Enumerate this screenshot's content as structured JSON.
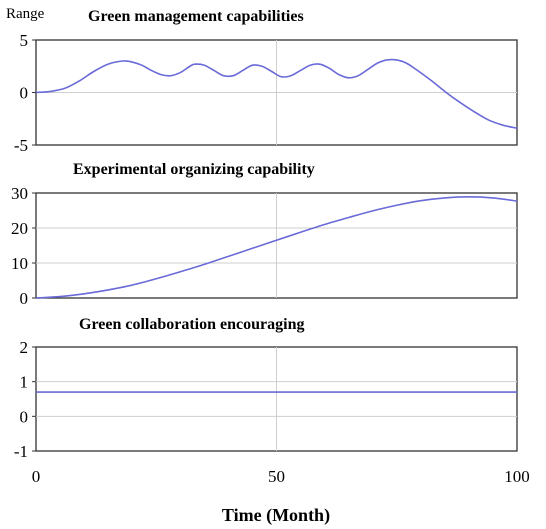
{
  "range_label": "Range",
  "xlabel": "Time (Month)",
  "x_ticks": [
    0,
    50,
    100
  ],
  "xlim": [
    0,
    100
  ],
  "line_color": "#6a6ad8",
  "chart_data": [
    {
      "type": "line",
      "title": "Green management capabilities",
      "xlim": [
        0,
        100
      ],
      "ylim": [
        -5,
        5
      ],
      "y_ticks": [
        5,
        0,
        -5
      ],
      "grid": true,
      "x": [
        0,
        3,
        6,
        9,
        12,
        15,
        18,
        20,
        22,
        24,
        26,
        28,
        30,
        32,
        33,
        35,
        37,
        39,
        41,
        43,
        45,
        47,
        49,
        51,
        53,
        55,
        57,
        59,
        61,
        63,
        65,
        67,
        69,
        71,
        73,
        75,
        77,
        79,
        82,
        85,
        88,
        91,
        94,
        97,
        100
      ],
      "values": [
        0,
        0.1,
        0.4,
        1.1,
        2.0,
        2.7,
        3.0,
        2.9,
        2.6,
        2.1,
        1.7,
        1.6,
        1.9,
        2.5,
        2.7,
        2.6,
        2.1,
        1.6,
        1.6,
        2.1,
        2.6,
        2.5,
        2.0,
        1.5,
        1.6,
        2.1,
        2.6,
        2.7,
        2.3,
        1.7,
        1.4,
        1.6,
        2.2,
        2.8,
        3.1,
        3.1,
        2.8,
        2.2,
        1.2,
        0.1,
        -0.9,
        -1.8,
        -2.6,
        -3.1,
        -3.4
      ]
    },
    {
      "type": "line",
      "title": "Experimental organizing capability",
      "xlim": [
        0,
        100
      ],
      "ylim": [
        0,
        30
      ],
      "y_ticks": [
        30,
        20,
        10,
        0
      ],
      "grid": true,
      "x": [
        0,
        5,
        10,
        15,
        20,
        25,
        30,
        35,
        40,
        45,
        50,
        55,
        60,
        65,
        70,
        75,
        80,
        85,
        90,
        95,
        100
      ],
      "values": [
        0,
        0.4,
        1.2,
        2.3,
        3.7,
        5.5,
        7.5,
        9.6,
        11.9,
        14.2,
        16.5,
        18.8,
        21.0,
        23.0,
        24.9,
        26.5,
        27.8,
        28.6,
        28.9,
        28.6,
        27.7
      ]
    },
    {
      "type": "line",
      "title": "Green collaboration encouraging",
      "xlim": [
        0,
        100
      ],
      "ylim": [
        -1,
        2
      ],
      "y_ticks": [
        2,
        1,
        0,
        -1
      ],
      "grid": true,
      "x": [
        0,
        100
      ],
      "values": [
        0.7,
        0.7
      ]
    }
  ]
}
